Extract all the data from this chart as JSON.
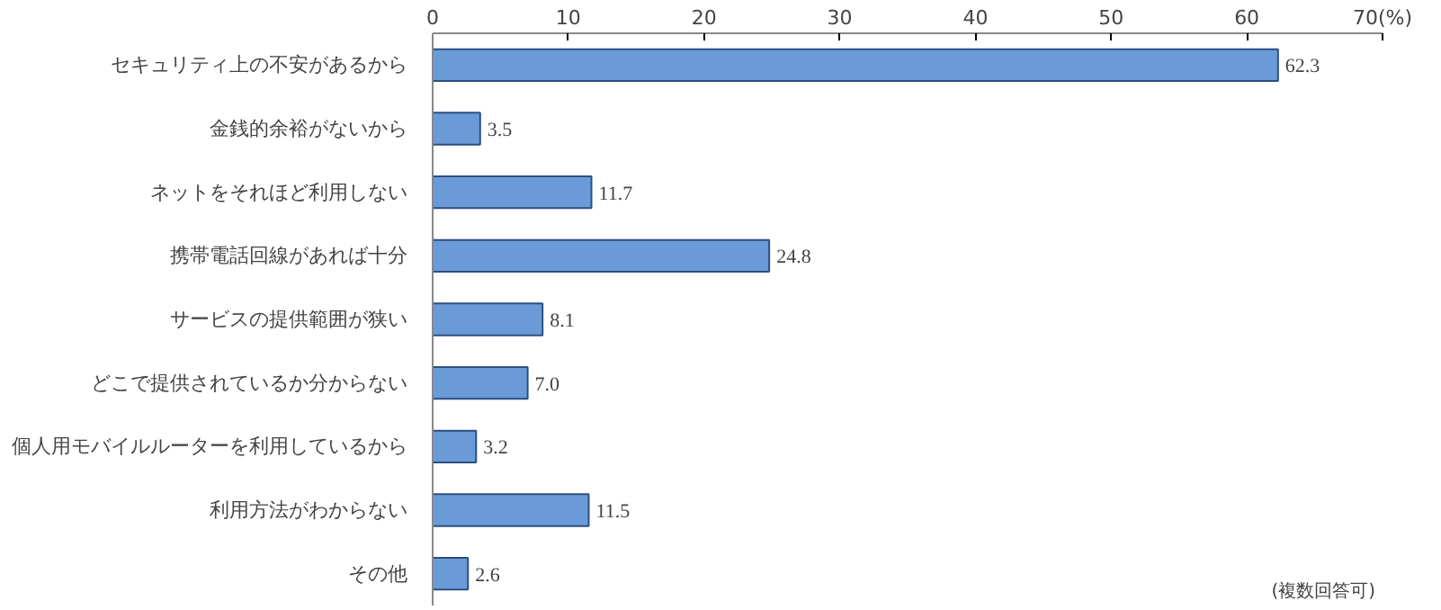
{
  "chart_data": {
    "type": "bar",
    "orientation": "horizontal",
    "categories": [
      "セキュリティ上の不安があるから",
      "金銭的余裕がないから",
      "ネットをそれほど利用しない",
      "携帯電話回線があれば十分",
      "サービスの提供範囲が狭い",
      "どこで提供されているか分からない",
      "個人用モバイルルーターを利用しているから",
      "利用方法がわからない",
      "その他"
    ],
    "values": [
      62.3,
      3.5,
      11.7,
      24.8,
      8.1,
      7.0,
      3.2,
      11.5,
      2.6
    ],
    "value_labels": [
      "62.3",
      "3.5",
      "11.7",
      "24.8",
      "8.1",
      "7.0",
      "3.2",
      "11.5",
      "2.6"
    ],
    "color": "#6a9bd8",
    "xlim": [
      0,
      70
    ],
    "xticks": [
      0,
      10,
      20,
      30,
      40,
      50,
      60,
      {
        "value": 70,
        "label": "70(%)"
      }
    ],
    "grid": false,
    "annotations": [
      "(複数回答可)"
    ]
  }
}
